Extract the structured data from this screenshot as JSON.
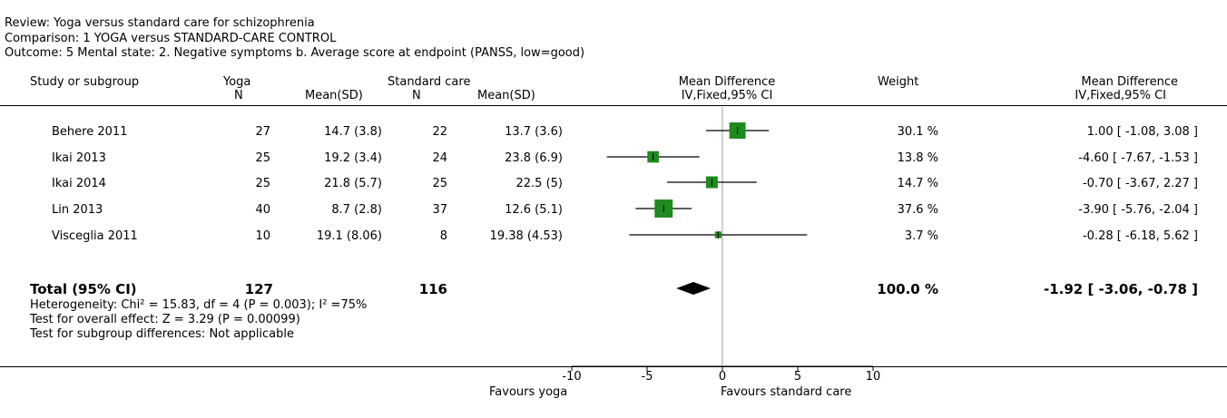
{
  "review": "Review: Yoga versus standard care for schizophrenia",
  "comparison": "Comparison: 1 YOGA versus STANDARD-CARE CONTROL",
  "outcome": "Outcome: 5 Mental state: 2. Negative symptoms b. Average score at endpoint (PANSS, low=good)",
  "columns": {
    "study": "Study or subgroup",
    "exp_group": "Yoga",
    "ctrl_group": "Standard care",
    "n": "N",
    "mean_sd": "Mean(SD)",
    "md": "Mean Difference",
    "md_method": "IV,Fixed,95% CI",
    "weight": "Weight",
    "md2": "Mean Difference",
    "md_method2": "IV,Fixed,95% CI"
  },
  "studies": [
    {
      "name": "Behere 2011",
      "n1": "27",
      "ms1": "14.7 (3.8)",
      "n2": "22",
      "ms2": "13.7 (3.6)",
      "weight": "30.1 %",
      "ci_text": "1.00 [ -1.08, 3.08 ]"
    },
    {
      "name": "Ikai 2013",
      "n1": "25",
      "ms1": "19.2 (3.4)",
      "n2": "24",
      "ms2": "23.8 (6.9)",
      "weight": "13.8 %",
      "ci_text": "-4.60 [ -7.67, -1.53 ]"
    },
    {
      "name": "Ikai 2014",
      "n1": "25",
      "ms1": "21.8 (5.7)",
      "n2": "25",
      "ms2": "22.5 (5)",
      "weight": "14.7 %",
      "ci_text": "-0.70 [ -3.67, 2.27 ]"
    },
    {
      "name": "Lin 2013",
      "n1": "40",
      "ms1": "8.7 (2.8)",
      "n2": "37",
      "ms2": "12.6 (5.1)",
      "weight": "37.6 %",
      "ci_text": "-3.90 [ -5.76, -2.04 ]"
    },
    {
      "name": "Visceglia 2011",
      "n1": "10",
      "ms1": "19.1 (8.06)",
      "n2": "8",
      "ms2": "19.38 (4.53)",
      "weight": "3.7 %",
      "ci_text": "-0.28 [ -6.18, 5.62 ]"
    }
  ],
  "total": {
    "label": "Total (95% CI)",
    "n1": "127",
    "n2": "116",
    "weight": "100.0 %",
    "ci_text": "-1.92 [ -3.06, -0.78 ]"
  },
  "heterogeneity": "Heterogeneity: Chi² = 15.83, df = 4 (P = 0.003); I² =75%",
  "overall_effect": "Test for overall effect: Z = 3.29 (P = 0.00099)",
  "subgroup_diff": "Test for subgroup differences: Not applicable",
  "axis": {
    "ticks": [
      "-10",
      "-5",
      "0",
      "5",
      "10"
    ],
    "favours_left": "Favours yoga",
    "favours_right": "Favours standard care"
  },
  "colors": {
    "marker": "#1f8a1f",
    "line": "#000000",
    "zero_line": "#a0a0a0"
  },
  "chart_data": {
    "type": "forest",
    "measure": "Mean Difference",
    "method": "IV,Fixed,95% CI",
    "xlim": [
      -10,
      10
    ],
    "xticks": [
      -10,
      -5,
      0,
      5,
      10
    ],
    "studies": [
      {
        "name": "Behere 2011",
        "md": 1.0,
        "lo": -1.08,
        "hi": 3.08,
        "weight": 30.1
      },
      {
        "name": "Ikai 2013",
        "md": -4.6,
        "lo": -7.67,
        "hi": -1.53,
        "weight": 13.8
      },
      {
        "name": "Ikai 2014",
        "md": -0.7,
        "lo": -3.67,
        "hi": 2.27,
        "weight": 14.7
      },
      {
        "name": "Lin 2013",
        "md": -3.9,
        "lo": -5.76,
        "hi": -2.04,
        "weight": 37.6
      },
      {
        "name": "Visceglia 2011",
        "md": -0.28,
        "lo": -6.18,
        "hi": 5.62,
        "weight": 3.7
      }
    ],
    "pooled": {
      "md": -1.92,
      "lo": -3.06,
      "hi": -0.78,
      "weight": 100.0
    }
  }
}
